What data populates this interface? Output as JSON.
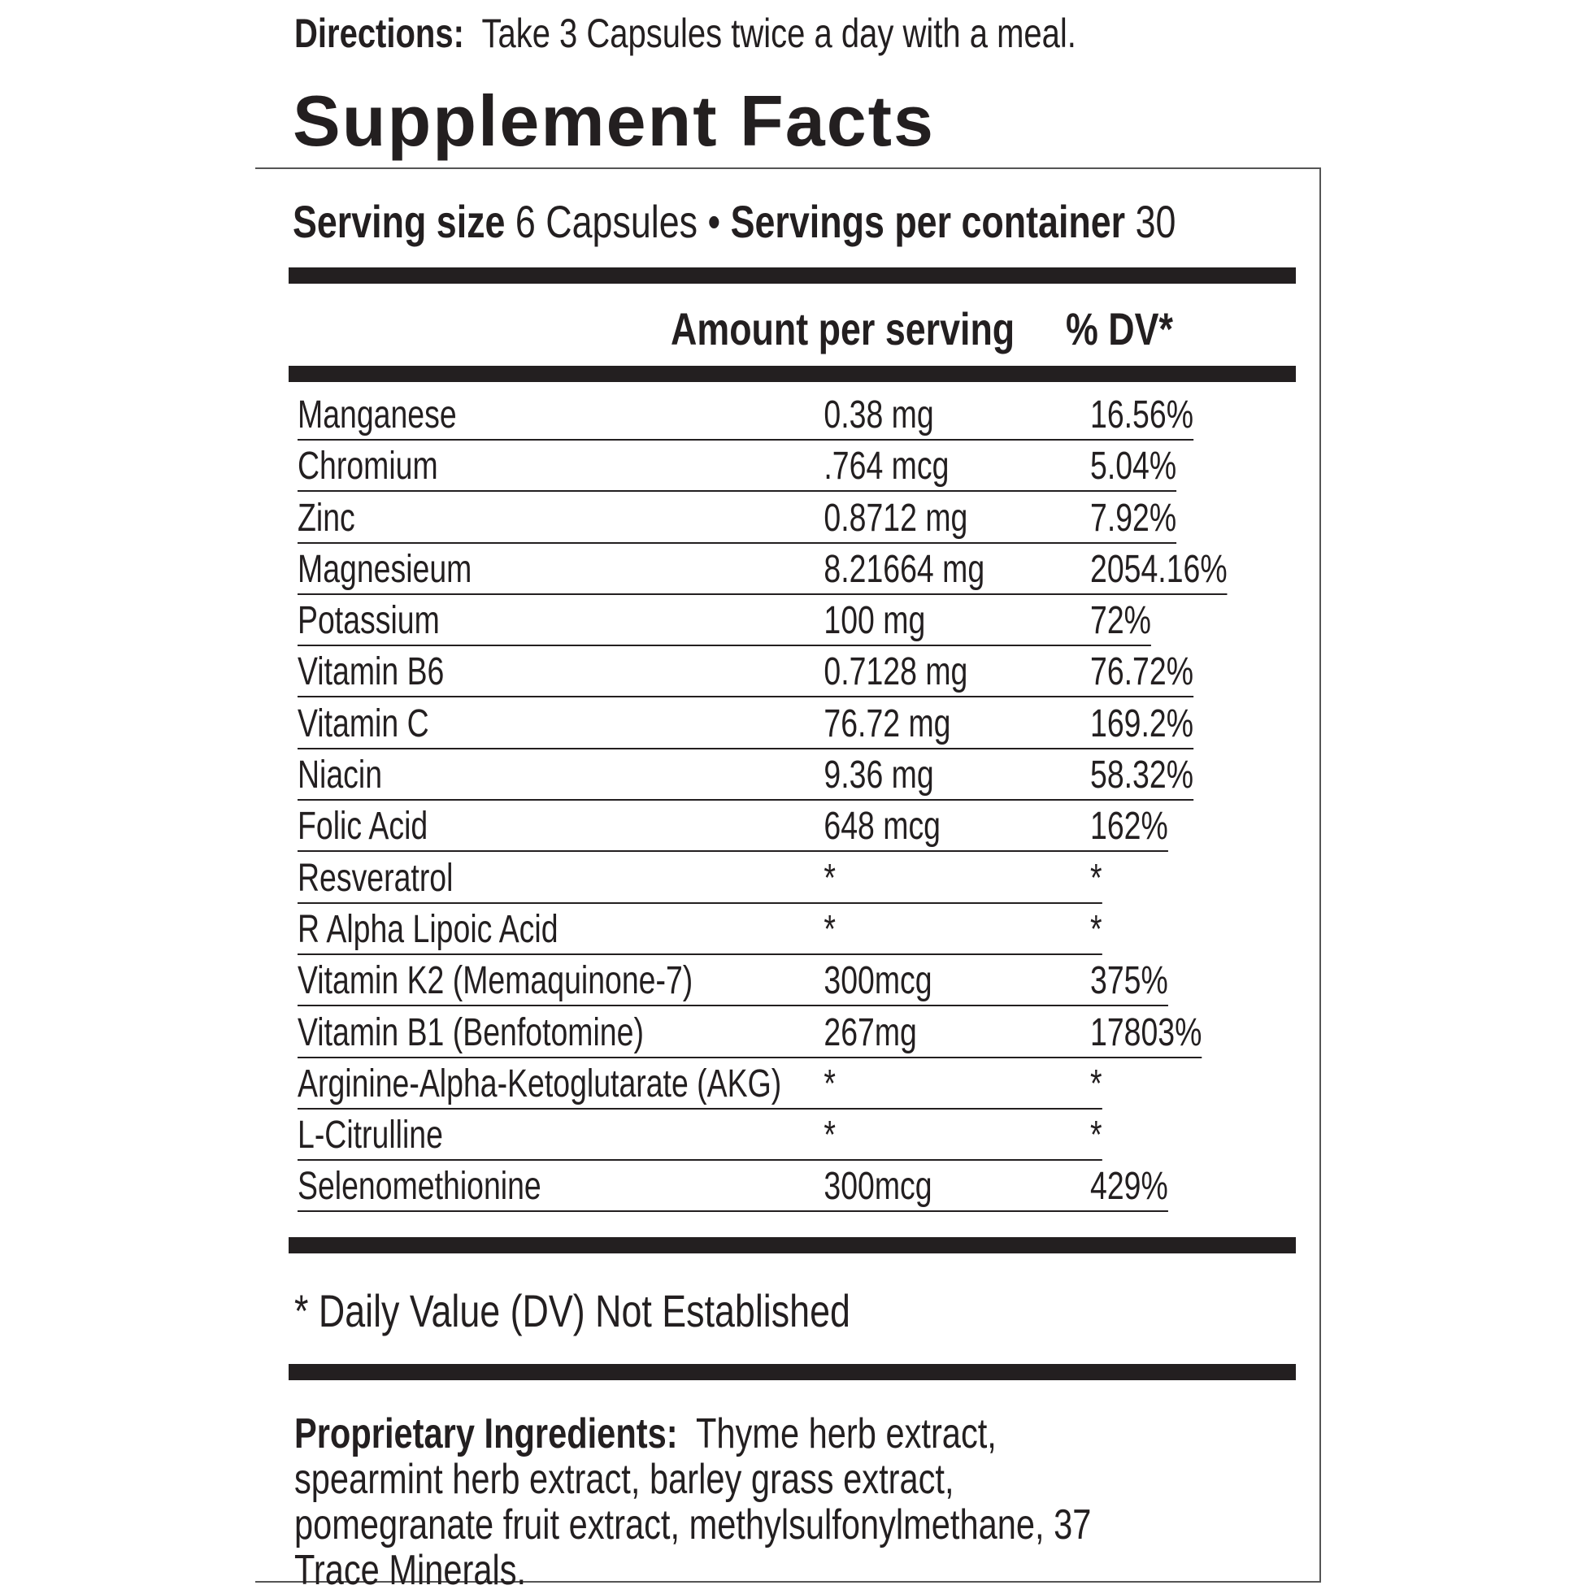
{
  "directions": {
    "label": "Directions:",
    "text": "Take 3 Capsules twice a day with a meal."
  },
  "title": "Supplement Facts",
  "serving": {
    "size_label": "Serving size",
    "size_value": "6 Capsules",
    "separator": "•",
    "per_container_label": "Servings per container",
    "per_container_value": "30"
  },
  "table": {
    "header": [
      "Amount per serving",
      "% DV*"
    ],
    "rows": [
      [
        "Manganese",
        "0.38 mg",
        "16.56%"
      ],
      [
        "Chromium",
        ".764 mcg",
        "5.04%"
      ],
      [
        "Zinc",
        "0.8712 mg",
        "7.92%"
      ],
      [
        "Magnesieum",
        "8.21664  mg",
        "2054.16%"
      ],
      [
        "Potassium",
        "100 mg",
        "72%"
      ],
      [
        "Vitamin B6",
        "0.7128  mg",
        "76.72%"
      ],
      [
        "Vitamin C",
        "76.72 mg",
        "169.2%"
      ],
      [
        "Niacin",
        "9.36 mg",
        "58.32%"
      ],
      [
        "Folic Acid",
        "648  mcg",
        "162%"
      ],
      [
        "Resveratrol",
        "*",
        "*"
      ],
      [
        "R Alpha Lipoic Acid",
        "*",
        "*"
      ],
      [
        "Vitamin K2 (Memaquinone-7)",
        "300mcg",
        "375%"
      ],
      [
        "Vitamin B1 (Benfotomine)",
        "267mg",
        "17803%"
      ],
      [
        "Arginine-Alpha-Ketoglutarate (AKG)",
        "*",
        "*"
      ],
      [
        "L-Citrulline",
        "*",
        "*"
      ],
      [
        "Selenomethionine",
        "300mcg",
        "429%"
      ]
    ]
  },
  "footnote": "* Daily Value (DV) Not Established",
  "proprietary": {
    "label": "Proprietary Ingredients:",
    "text": "Thyme herb extract, spearmint herb extract, barley grass extract, pomegranate fruit extract, methylsulfonylmethane, 37 Trace Minerals."
  }
}
